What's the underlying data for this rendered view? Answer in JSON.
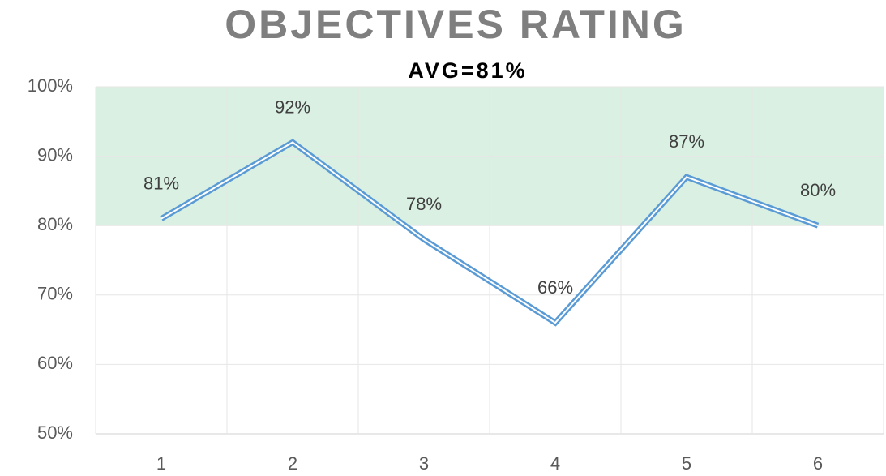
{
  "chart_data": {
    "type": "line",
    "title": "OBJECTIVES RATING",
    "subtitle": "AVG=81%",
    "categories": [
      "1",
      "2",
      "3",
      "4",
      "5",
      "6"
    ],
    "values": [
      81,
      92,
      78,
      66,
      87,
      80
    ],
    "value_labels": [
      "81%",
      "92%",
      "78%",
      "66%",
      "87%",
      "80%"
    ],
    "color": "#5b9bd5",
    "target_band": [
      80,
      100
    ],
    "target_band_color": "#d9f0e3",
    "ylim": [
      50,
      100
    ],
    "yticks": [
      {
        "value": 50,
        "label": "50%"
      },
      {
        "value": 60,
        "label": "60%"
      },
      {
        "value": 70,
        "label": "70%"
      },
      {
        "value": 80,
        "label": "80%"
      },
      {
        "value": 90,
        "label": "90%"
      },
      {
        "value": 100,
        "label": "100%"
      }
    ],
    "grid": true
  }
}
